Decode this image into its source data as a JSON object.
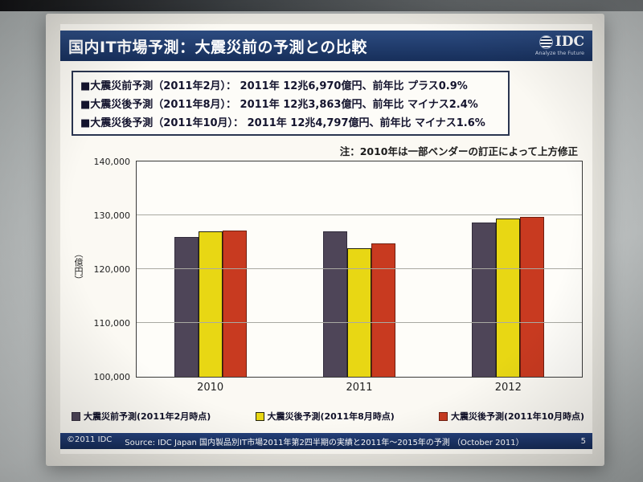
{
  "slide": {
    "title": "国内IT市場予測：大震災前の予測との比較",
    "logo": {
      "text": "IDC",
      "tagline": "Analyze the Future"
    },
    "bullets": [
      "■大震災前予測（2011年2月）： 2011年 12兆6,970億円、前年比 プラス0.9%",
      "■大震災後予測（2011年8月）： 2011年 12兆3,863億円、前年比 マイナス2.4%",
      "■大震災後予測（2011年10月）： 2011年 12兆4,797億円、前年比 マイナス1.6%"
    ],
    "note": "注：2010年は一部ベンダーの訂正によって上方修正",
    "footer": {
      "copyright": "©2011 IDC",
      "source": "Source: IDC Japan 国内製品別IT市場2011年第2四半期の実績と2011年～2015年の予測 （October 2011）",
      "page": "5"
    }
  },
  "chart_data": {
    "type": "bar",
    "categories": [
      "2010",
      "2011",
      "2012"
    ],
    "series": [
      {
        "name": "大震災前予測(2011年2月時点)",
        "color": "#4e4558",
        "border": "#322c3c",
        "values": [
          126000,
          126970,
          128600
        ]
      },
      {
        "name": "大震災後予測(2011年8月時点)",
        "color": "#e8d714",
        "border": "#23230d",
        "values": [
          127000,
          123863,
          129400
        ]
      },
      {
        "name": "大震災後予測(2011年10月時点)",
        "color": "#c83a20",
        "border": "#701f10",
        "values": [
          127100,
          124797,
          129650
        ]
      }
    ],
    "title": "",
    "xlabel": "",
    "ylabel": "（億円）",
    "ylim": [
      100000,
      140000
    ],
    "yticks": [
      100000,
      110000,
      120000,
      130000,
      140000
    ],
    "ytick_labels": [
      "100,000",
      "110,000",
      "120,000",
      "130,000",
      "140,000"
    ],
    "grid": true,
    "legend_position": "bottom"
  }
}
